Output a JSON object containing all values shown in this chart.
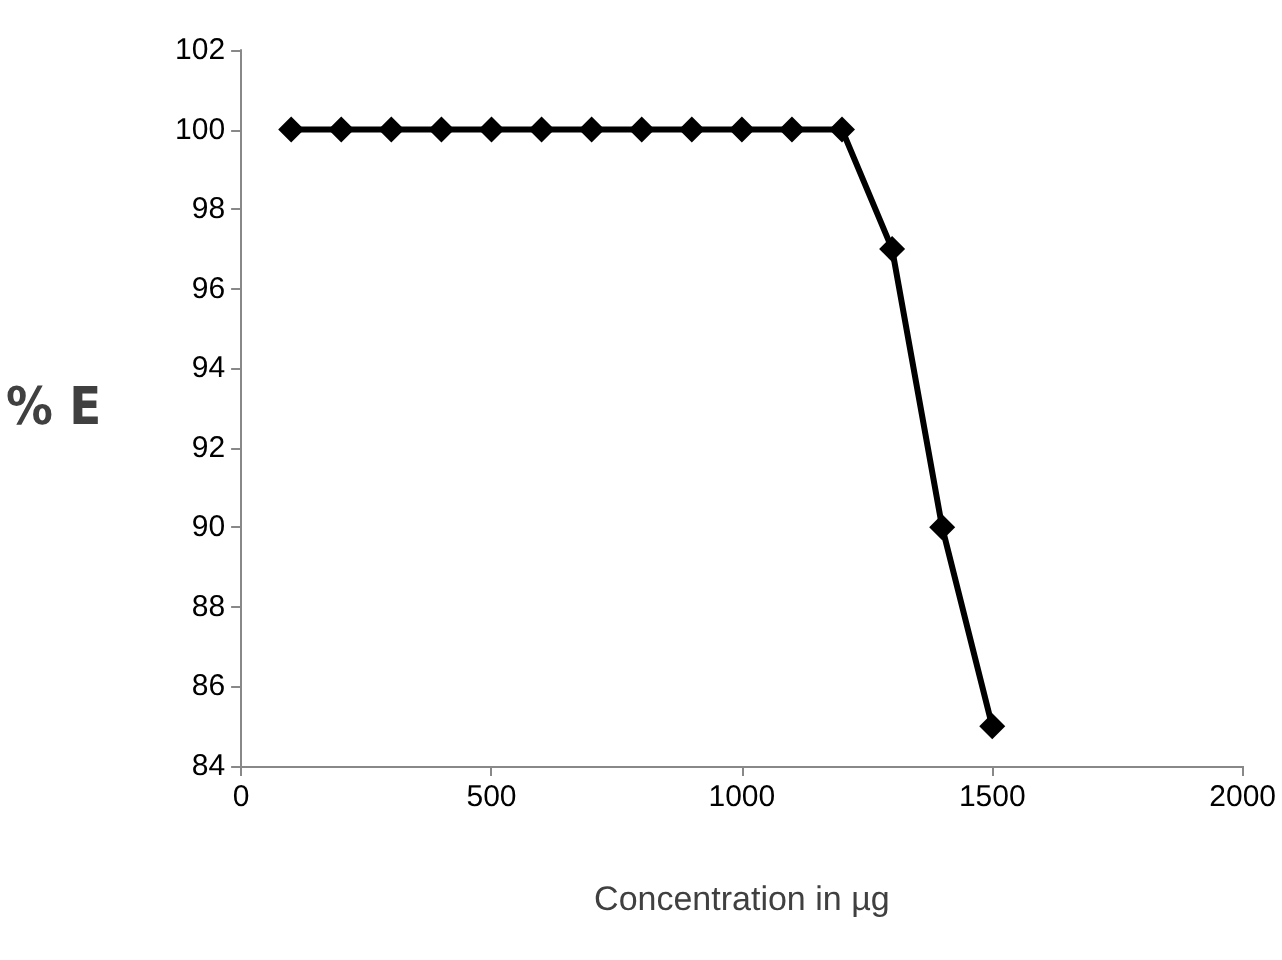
{
  "chart_data": {
    "type": "line",
    "xlabel": "Concentration in µg",
    "ylabel": "% E",
    "x": [
      100,
      200,
      300,
      400,
      500,
      600,
      700,
      800,
      900,
      1000,
      1100,
      1200,
      1300,
      1400,
      1500
    ],
    "series": [
      {
        "color": "#000000",
        "values": [
          100,
          100,
          100,
          100,
          100,
          100,
          100,
          100,
          100,
          100,
          100,
          100,
          97,
          90,
          85
        ]
      }
    ],
    "xlim": [
      0,
      2000
    ],
    "xticks": [
      0,
      500,
      1000,
      1500,
      2000
    ],
    "ylim": [
      84,
      102
    ],
    "yticks": [
      84,
      86,
      88,
      90,
      92,
      94,
      96,
      98,
      100,
      102
    ],
    "grid": false,
    "marker": "diamond",
    "line_style": "solid"
  }
}
